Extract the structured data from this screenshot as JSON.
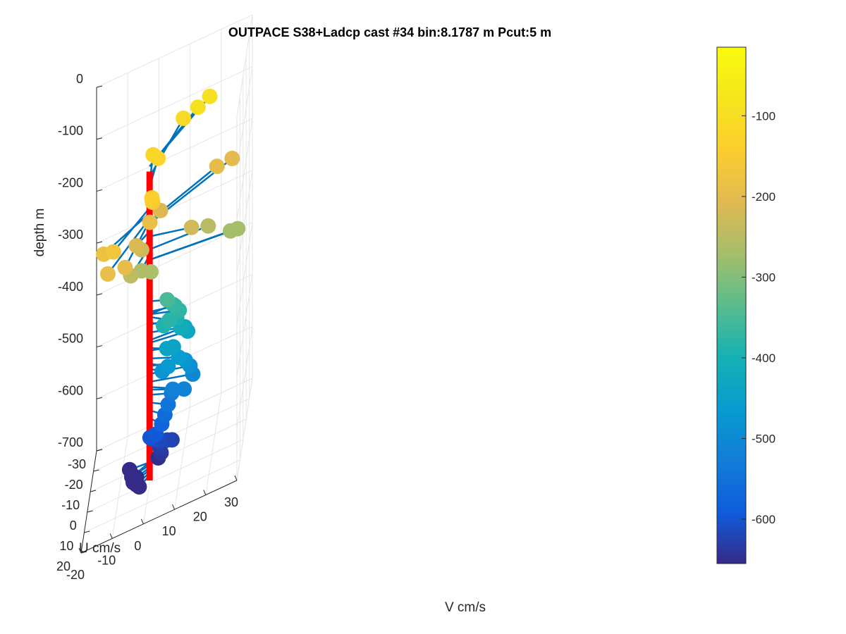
{
  "chart_data": {
    "type": "scatter",
    "title": "OUTPACE S38+Ladcp cast #34 bin:8.1787 m  Pcut:5 m",
    "xlabel": "V cm/s",
    "ylabel": "U cm/s",
    "zlabel": "depth m",
    "xlim": [
      -20,
      30
    ],
    "ylim": [
      -30,
      20
    ],
    "zlim": [
      -700,
      0
    ],
    "x_ticks": [
      "-20",
      "-10",
      "0",
      "10",
      "20",
      "30"
    ],
    "y_ticks": [
      "-30",
      "-20",
      "-10",
      "0",
      "10",
      "20"
    ],
    "z_ticks": [
      "0",
      "-100",
      "-200",
      "-300",
      "-400",
      "-500",
      "-600",
      "-700"
    ],
    "grid": true,
    "colorbar": {
      "range": [
        -655,
        -15
      ],
      "ticks": [
        "-100",
        "-200",
        "-300",
        "-400",
        "-500",
        "-600"
      ],
      "colormap": "parula"
    },
    "colors": {
      "profile_line": "#ff0000",
      "vector_line": "#0072bd"
    },
    "points": [
      {
        "v": 13.6,
        "u": -19.3,
        "depth": -90
      },
      {
        "v": 17.1,
        "u": -22.1,
        "depth": -90
      },
      {
        "v": 8.6,
        "u": -22.5,
        "depth": -110
      },
      {
        "v": -0.2,
        "u": -13.4,
        "depth": -120
      },
      {
        "v": 1.4,
        "u": -13.1,
        "depth": -130
      },
      {
        "v": 1.1,
        "u": 3.5,
        "depth": -140
      },
      {
        "v": 1.0,
        "u": 1.9,
        "depth": -150
      },
      {
        "v": 1.0,
        "u": 0.5,
        "depth": -160
      },
      {
        "v": -10.2,
        "u": 14.3,
        "depth": -170
      },
      {
        "v": -13.7,
        "u": 10.4,
        "depth": -180
      },
      {
        "v": -11.5,
        "u": 19.1,
        "depth": -190
      },
      {
        "v": 0.3,
        "u": 2.2,
        "depth": -190
      },
      {
        "v": -6.0,
        "u": 18.6,
        "depth": -195
      },
      {
        "v": 20.4,
        "u": -12.2,
        "depth": -195
      },
      {
        "v": 25.1,
        "u": -14.0,
        "depth": -200
      },
      {
        "v": 2.8,
        "u": -6.9,
        "depth": -210
      },
      {
        "v": -3.8,
        "u": 4.4,
        "depth": -215
      },
      {
        "v": -2.2,
        "u": 3.7,
        "depth": -230
      },
      {
        "v": -5.0,
        "u": 10.6,
        "depth": -245
      },
      {
        "v": -2.0,
        "u": 6.5,
        "depth": -260
      },
      {
        "v": 1.2,
        "u": 8.0,
        "depth": -265
      },
      {
        "v": 14.0,
        "u": 5.5,
        "depth": -225
      },
      {
        "v": 19.0,
        "u": 2.0,
        "depth": -250
      },
      {
        "v": 26.4,
        "u": 4.6,
        "depth": -270
      },
      {
        "v": 28.8,
        "u": 5.2,
        "depth": -270
      },
      {
        "v": 6.0,
        "u": 3.5,
        "depth": -350
      },
      {
        "v": 7.6,
        "u": 0.6,
        "depth": -375
      },
      {
        "v": 8.5,
        "u": 3.2,
        "depth": -370
      },
      {
        "v": 10.0,
        "u": 5.1,
        "depth": -375
      },
      {
        "v": 7.0,
        "u": 6.5,
        "depth": -380
      },
      {
        "v": 5.0,
        "u": 5.3,
        "depth": -390
      },
      {
        "v": 9.0,
        "u": 3.1,
        "depth": -395
      },
      {
        "v": 10.5,
        "u": 5.1,
        "depth": -410
      },
      {
        "v": 12.5,
        "u": 3.1,
        "depth": -430
      },
      {
        "v": 11.5,
        "u": 1.6,
        "depth": -425
      },
      {
        "v": 8.0,
        "u": 3.8,
        "depth": -445
      },
      {
        "v": 6.0,
        "u": 4.5,
        "depth": -440
      },
      {
        "v": 10.0,
        "u": 6.5,
        "depth": -460
      },
      {
        "v": 12.0,
        "u": 5.5,
        "depth": -475
      },
      {
        "v": 6.5,
        "u": 6.0,
        "depth": -470
      },
      {
        "v": 4.5,
        "u": 4.4,
        "depth": -480
      },
      {
        "v": 13.5,
        "u": 5.5,
        "depth": -490
      },
      {
        "v": 14.5,
        "u": 6.5,
        "depth": -505
      },
      {
        "v": 12.0,
        "u": 9.5,
        "depth": -515
      },
      {
        "v": 8.0,
        "u": 5.5,
        "depth": -520
      },
      {
        "v": 7.5,
        "u": 4.5,
        "depth": -530
      },
      {
        "v": 6.5,
        "u": 5.5,
        "depth": -545
      },
      {
        "v": 5.5,
        "u": 6.0,
        "depth": -560
      },
      {
        "v": 4.5,
        "u": 6.0,
        "depth": -575
      },
      {
        "v": 2.5,
        "u": 4.5,
        "depth": -595
      },
      {
        "v": 0.5,
        "u": 3.5,
        "depth": -600
      },
      {
        "v": 1.0,
        "u": 2.0,
        "depth": -610
      },
      {
        "v": 3.5,
        "u": 3.5,
        "depth": -615
      },
      {
        "v": 6.0,
        "u": 3.5,
        "depth": -620
      },
      {
        "v": 7.5,
        "u": 3.2,
        "depth": -625
      },
      {
        "v": 3.5,
        "u": 2.2,
        "depth": -632
      },
      {
        "v": 4.0,
        "u": 3.2,
        "depth": -640
      },
      {
        "v": 3.0,
        "u": 2.5,
        "depth": -650
      },
      {
        "v": -6.5,
        "u": -1.0,
        "depth": -660
      },
      {
        "v": -5.0,
        "u": 3.0,
        "depth": -660
      },
      {
        "v": -5.5,
        "u": 2.0,
        "depth": -665
      },
      {
        "v": -4.0,
        "u": 2.0,
        "depth": -670
      },
      {
        "v": -5.0,
        "u": 2.5,
        "depth": -675
      },
      {
        "v": -4.0,
        "u": 3.0,
        "depth": -680
      },
      {
        "v": -3.0,
        "u": 3.5,
        "depth": -685
      }
    ]
  }
}
